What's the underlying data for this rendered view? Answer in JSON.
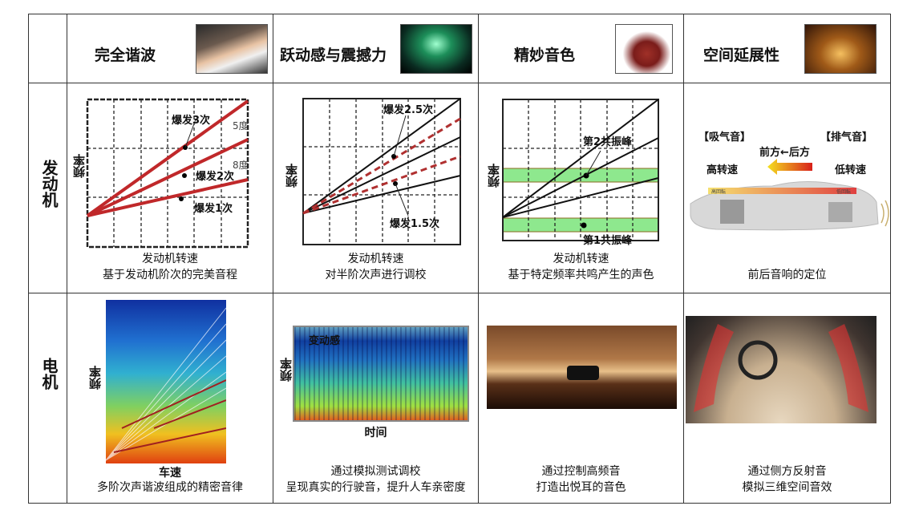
{
  "headers": [
    "完全谐波",
    "跃动感与震撼力",
    "精妙音色",
    "空间延展性"
  ],
  "rows": {
    "engine": "发动机",
    "motor": "电机"
  },
  "engine": {
    "c1": {
      "ylabel": "频率",
      "xlabel": "发动机转速",
      "caption": "基于发动机阶次的完美音程",
      "labels": [
        "爆发3次",
        "爆发2次",
        "爆发1次"
      ],
      "d5": "5度",
      "d8": "8度"
    },
    "c2": {
      "ylabel": "频率",
      "xlabel": "发动机转速",
      "caption": "对半阶次声进行调校",
      "labels": [
        "爆发2.5次",
        "爆发1.5次"
      ]
    },
    "c3": {
      "ylabel": "频率",
      "xlabel": "发动机转速",
      "caption": "基于特定频率共鸣产生的声色",
      "labels": [
        "第2共振峰",
        "第1共振峰"
      ]
    },
    "c4": {
      "intake": "【吸气音】",
      "exhaust": "【排气音】",
      "direction": "前方←后方",
      "high": "高转速",
      "low": "低转速",
      "bar_high": "高回転",
      "bar_low": "低回転",
      "caption": "前后音响的定位"
    }
  },
  "motor": {
    "c1": {
      "ylabel": "频率",
      "xlabel": "车速",
      "caption": "多阶次声谐波组成的精密音律"
    },
    "c2": {
      "ylabel": "频率",
      "xlabel": "时间",
      "label": "变动感",
      "caption": [
        "通过模拟测试调校",
        "呈现真实的行驶音，提升人车亲密度"
      ]
    },
    "c3": {
      "caption": [
        "通过控制高频音",
        "打造出悦耳的音色"
      ]
    },
    "c4": {
      "caption": [
        "通过侧方反射音",
        "模拟三维空间音效"
      ]
    }
  },
  "colors": {
    "red": "#c0282a",
    "green": "#8ee88e",
    "border": "#333333"
  }
}
